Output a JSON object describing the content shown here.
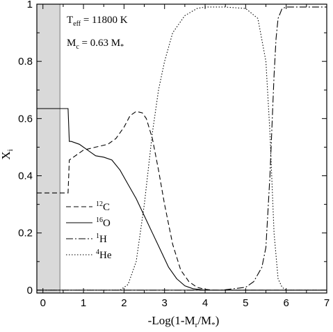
{
  "chart_data": {
    "type": "line",
    "xlabel": {
      "pre": "-Log(1-M",
      "sub": "r",
      "post": "/M",
      "sub2": "*",
      "close": ")"
    },
    "ylabel": {
      "main": "X",
      "sub": "i"
    },
    "xlim": [
      -0.15,
      7
    ],
    "ylim": [
      -0.01,
      1.0
    ],
    "x_ticks": [
      0,
      1,
      2,
      3,
      4,
      5,
      6,
      7
    ],
    "y_ticks": [
      0,
      0.2,
      0.4,
      0.6,
      0.8,
      1
    ],
    "y_tick_labels": [
      "0",
      "0.2",
      "0.4",
      "0.6",
      "0.8",
      "1"
    ],
    "shaded_region": {
      "x0": -0.15,
      "x1": 0.42,
      "color": "#d9d9d9"
    },
    "annotations": {
      "teff": {
        "main": "T",
        "sub": "eff",
        "rest": " = 11800 K"
      },
      "mc": {
        "main": "M",
        "sub": "c",
        "rest": " = 0.63 M",
        "sub2": "*"
      }
    },
    "series": [
      {
        "name": "12C",
        "sup": "12",
        "base": "C",
        "dash": "7,4",
        "x": [
          -0.15,
          0.42,
          0.62,
          0.65,
          0.7,
          1.0,
          1.3,
          1.6,
          1.8,
          2.0,
          2.15,
          2.3,
          2.45,
          2.55,
          2.7,
          2.85,
          3.0,
          3.2,
          3.4,
          3.6,
          3.8,
          4.0,
          4.2,
          5.0,
          7.0
        ],
        "y": [
          0.34,
          0.34,
          0.34,
          0.455,
          0.46,
          0.49,
          0.5,
          0.51,
          0.53,
          0.57,
          0.61,
          0.625,
          0.62,
          0.6,
          0.53,
          0.42,
          0.3,
          0.16,
          0.07,
          0.03,
          0.01,
          0.003,
          0.0,
          0.0,
          0.0
        ]
      },
      {
        "name": "16O",
        "sup": "16",
        "base": "O",
        "dash": "",
        "x": [
          -0.15,
          0.42,
          0.62,
          0.65,
          0.7,
          0.9,
          1.1,
          1.3,
          1.5,
          1.7,
          1.9,
          2.1,
          2.3,
          2.5,
          2.7,
          2.9,
          3.1,
          3.3,
          3.5,
          3.7,
          4.0,
          7.0
        ],
        "y": [
          0.635,
          0.635,
          0.635,
          0.52,
          0.52,
          0.51,
          0.49,
          0.47,
          0.465,
          0.455,
          0.42,
          0.37,
          0.32,
          0.26,
          0.2,
          0.14,
          0.08,
          0.04,
          0.015,
          0.005,
          0.0,
          0.0
        ]
      },
      {
        "name": "1H",
        "sup": "1",
        "base": "H",
        "dash": "10,3,2,3",
        "x": [
          -0.15,
          4.4,
          5.0,
          5.2,
          5.4,
          5.5,
          5.6,
          5.7,
          5.75,
          5.8,
          5.9,
          6.0,
          6.2,
          7.0
        ],
        "y": [
          0.0,
          0.0,
          0.01,
          0.03,
          0.08,
          0.15,
          0.4,
          0.75,
          0.88,
          0.95,
          0.985,
          0.99,
          0.99,
          0.99
        ]
      },
      {
        "name": "4He",
        "sup": "4",
        "base": "He",
        "dash": "1.5,2.5",
        "x": [
          -0.15,
          1.9,
          2.1,
          2.3,
          2.5,
          2.7,
          2.85,
          3.0,
          3.2,
          3.5,
          3.8,
          4.0,
          4.5,
          5.0,
          5.3,
          5.5,
          5.6,
          5.7,
          5.8,
          5.9,
          6.0,
          7.0
        ],
        "y": [
          0.0,
          0.0,
          0.02,
          0.1,
          0.3,
          0.55,
          0.7,
          0.8,
          0.9,
          0.96,
          0.985,
          0.99,
          0.99,
          0.985,
          0.95,
          0.8,
          0.55,
          0.2,
          0.04,
          0.01,
          0.0,
          0.0
        ]
      }
    ],
    "legend_order": [
      "12C",
      "16O",
      "1H",
      "4He"
    ]
  }
}
